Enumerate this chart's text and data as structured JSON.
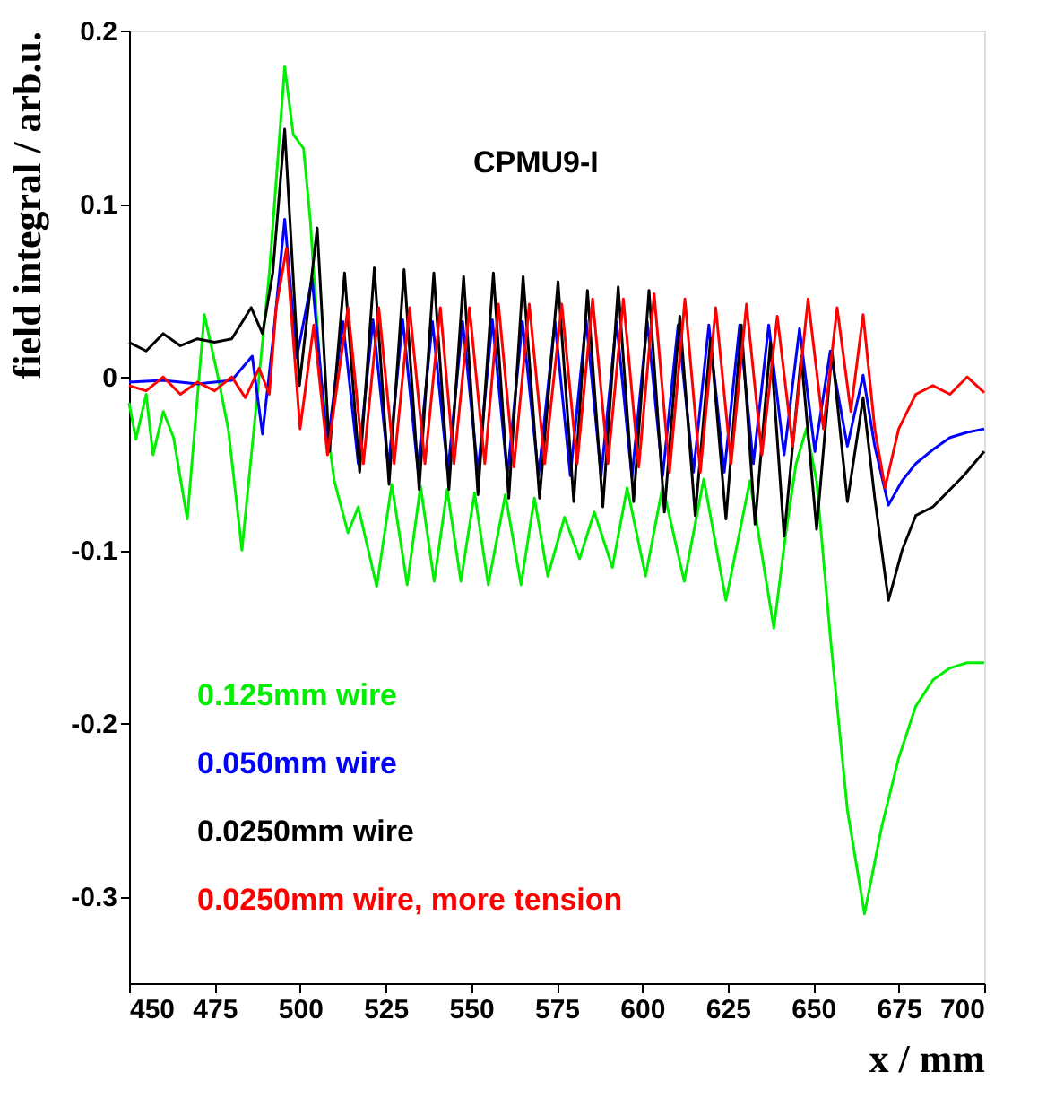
{
  "chart_data": {
    "type": "line",
    "xlabel": "x / mm",
    "ylabel": "field integral / arb.u.",
    "annotations": [
      "CPMU9-I"
    ],
    "xlim": [
      450,
      700
    ],
    "xticks": [
      450,
      475,
      500,
      525,
      550,
      575,
      600,
      625,
      650,
      675,
      700
    ],
    "ylim": [
      -0.35,
      0.2
    ],
    "yticks": [
      -0.3,
      -0.2,
      -0.1,
      0,
      0.1,
      0.2
    ],
    "legend": "bottom left",
    "series": [
      {
        "name": "0.125mm wire",
        "color": "#00ee00",
        "x": [
          450,
          452,
          455,
          457,
          460,
          463,
          467,
          472,
          476,
          479,
          483,
          487,
          491,
          495.5,
          498,
          501,
          503,
          506,
          510,
          514,
          517,
          522.4,
          526.8,
          531.3,
          535.2,
          539.2,
          543,
          547,
          551,
          555,
          560,
          564.6,
          568.5,
          572.4,
          577.3,
          581.7,
          586,
          591.3,
          595.6,
          601,
          606,
          612.3,
          618,
          624.5,
          631.5,
          638.5,
          642,
          645,
          648,
          651,
          655,
          660,
          665,
          670,
          675,
          680,
          685,
          690,
          695,
          700
        ],
        "values": [
          -0.015,
          -0.036,
          -0.01,
          -0.045,
          -0.02,
          -0.035,
          -0.082,
          0.036,
          0.0,
          -0.03,
          -0.1,
          -0.02,
          0.06,
          0.179,
          0.14,
          0.132,
          0.09,
          0.0,
          -0.06,
          -0.09,
          -0.075,
          -0.121,
          -0.062,
          -0.12,
          -0.063,
          -0.118,
          -0.065,
          -0.118,
          -0.067,
          -0.12,
          -0.068,
          -0.12,
          -0.07,
          -0.115,
          -0.081,
          -0.105,
          -0.078,
          -0.11,
          -0.064,
          -0.115,
          -0.063,
          -0.118,
          -0.059,
          -0.129,
          -0.06,
          -0.145,
          -0.09,
          -0.05,
          -0.03,
          -0.06,
          -0.15,
          -0.25,
          -0.31,
          -0.26,
          -0.22,
          -0.19,
          -0.175,
          -0.168,
          -0.165,
          -0.165
        ]
      },
      {
        "name": "0.050mm wire",
        "color": "#0000ff",
        "x": [
          450,
          460,
          470,
          480,
          486,
          489,
          492,
          495.5,
          499,
          503.5,
          508,
          512.5,
          517,
          521.3,
          525.8,
          530,
          534.4,
          538.7,
          543.2,
          547.5,
          552,
          556.2,
          560.6,
          565,
          569.7,
          574.5,
          579,
          583.6,
          588,
          592.5,
          597,
          601.5,
          606,
          610.5,
          615,
          619.5,
          624,
          628.5,
          632.5,
          637,
          641.5,
          646,
          650.5,
          655,
          660,
          664.6,
          668,
          672,
          676,
          680,
          685,
          690,
          695,
          700
        ],
        "values": [
          -0.003,
          -0.002,
          -0.004,
          -0.002,
          0.012,
          -0.033,
          0.02,
          0.091,
          0.011,
          0.057,
          -0.04,
          0.032,
          -0.05,
          0.033,
          -0.052,
          0.033,
          -0.053,
          0.032,
          -0.055,
          0.032,
          -0.055,
          0.033,
          -0.057,
          0.032,
          -0.057,
          0.032,
          -0.057,
          0.033,
          -0.057,
          0.032,
          -0.058,
          0.032,
          -0.057,
          0.03,
          -0.055,
          0.03,
          -0.055,
          0.03,
          -0.05,
          0.03,
          -0.045,
          0.028,
          -0.043,
          0.015,
          -0.04,
          0.001,
          -0.04,
          -0.074,
          -0.06,
          -0.05,
          -0.042,
          -0.035,
          -0.032,
          -0.03
        ]
      },
      {
        "name": "0.0250mm wire",
        "color": "#000000",
        "x": [
          450,
          455,
          460,
          465,
          470,
          475,
          480,
          485.7,
          489,
          492,
          495.5,
          499.8,
          505,
          508.6,
          513,
          517.4,
          521.7,
          526,
          530.4,
          534.8,
          539.1,
          543.5,
          547.8,
          552,
          556.5,
          561,
          565.2,
          570,
          575.4,
          580,
          584,
          588.5,
          593,
          597.5,
          602,
          606.5,
          611,
          615.5,
          620,
          624.5,
          629,
          633,
          637.5,
          641.5,
          646.5,
          651,
          655.5,
          660,
          664.6,
          668,
          672,
          676,
          680,
          685,
          690,
          694,
          700
        ],
        "values": [
          0.02,
          0.015,
          0.025,
          0.018,
          0.022,
          0.02,
          0.022,
          0.04,
          0.025,
          0.06,
          0.143,
          -0.005,
          0.086,
          -0.043,
          0.06,
          -0.055,
          0.063,
          -0.062,
          0.062,
          -0.065,
          0.06,
          -0.065,
          0.058,
          -0.068,
          0.06,
          -0.07,
          0.058,
          -0.07,
          0.055,
          -0.072,
          0.05,
          -0.075,
          0.052,
          -0.072,
          0.05,
          -0.078,
          0.035,
          -0.08,
          0.022,
          -0.082,
          0.03,
          -0.085,
          0.02,
          -0.092,
          0.012,
          -0.088,
          0.015,
          -0.072,
          -0.012,
          -0.07,
          -0.129,
          -0.1,
          -0.08,
          -0.075,
          -0.065,
          -0.057,
          -0.043
        ]
      },
      {
        "name": "0.0250mm wire, more tension",
        "color": "#ff0000",
        "x": [
          450,
          455,
          460,
          465,
          470,
          475,
          480,
          484,
          488,
          491,
          493,
          496,
          500,
          504,
          508,
          514,
          518.5,
          523,
          527.5,
          532,
          536.5,
          541,
          545,
          549.5,
          554,
          558,
          562.5,
          567,
          571.5,
          576.5,
          581,
          585.5,
          590,
          594.5,
          599,
          603.5,
          608,
          612.5,
          617,
          621.5,
          626,
          630.5,
          635,
          639.5,
          644,
          648.5,
          653,
          657,
          661,
          664.6,
          668,
          671,
          675,
          680,
          685,
          690,
          695,
          700
        ],
        "values": [
          -0.005,
          -0.008,
          0.0,
          -0.01,
          -0.003,
          -0.008,
          0.0,
          -0.012,
          0.005,
          -0.01,
          0.04,
          0.074,
          -0.03,
          0.03,
          -0.045,
          0.04,
          -0.05,
          0.04,
          -0.05,
          0.04,
          -0.05,
          0.04,
          -0.05,
          0.04,
          -0.05,
          0.042,
          -0.052,
          0.042,
          -0.05,
          0.042,
          -0.05,
          0.045,
          -0.05,
          0.045,
          -0.052,
          0.048,
          -0.055,
          0.045,
          -0.055,
          0.04,
          -0.05,
          0.042,
          -0.045,
          0.035,
          -0.04,
          0.045,
          -0.03,
          0.04,
          -0.02,
          0.036,
          -0.03,
          -0.064,
          -0.03,
          -0.01,
          -0.005,
          -0.01,
          0.0,
          -0.009
        ]
      }
    ]
  }
}
